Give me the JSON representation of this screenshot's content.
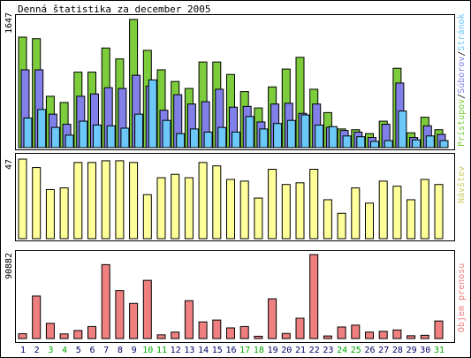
{
  "chart_data": {
    "type": "bar",
    "title": "Denná štatistika za december 2005",
    "categories": [
      "1",
      "2",
      "3",
      "4",
      "5",
      "6",
      "7",
      "8",
      "9",
      "10",
      "11",
      "12",
      "13",
      "14",
      "15",
      "16",
      "17",
      "18",
      "19",
      "20",
      "21",
      "22",
      "23",
      "24",
      "25",
      "26",
      "27",
      "28",
      "29",
      "30",
      "31"
    ],
    "weekend_days": [
      "3",
      "4",
      "10",
      "11",
      "17",
      "18",
      "24",
      "25",
      "31"
    ],
    "colors": {
      "hits": "#7ccc3c",
      "files": "#8080e8",
      "pages": "#6cc8f8",
      "visits": "#ffff99",
      "kbytes": "#f08080",
      "weekday_label": "#000066",
      "weekend_label": "#00aa00"
    },
    "panels": [
      {
        "name": "hits-files-pages",
        "max_label": "1647",
        "ylim": [
          0,
          1647
        ],
        "legend": [
          {
            "text": "Prístupov",
            "color": "#7ccc3c"
          },
          {
            "text": "/",
            "color": "#000000"
          },
          {
            "text": "Súborov",
            "color": "#8080e8"
          },
          {
            "text": "/",
            "color": "#000000"
          },
          {
            "text": "Stránok",
            "color": "#6cc8f8"
          }
        ],
        "series": [
          {
            "name": "Prístupov",
            "values": [
              1420,
              1400,
              660,
              580,
              970,
              970,
              1280,
              1140,
              1647,
              1250,
              1000,
              850,
              760,
              1100,
              1100,
              940,
              720,
              510,
              780,
              1010,
              1160,
              750,
              450,
              240,
              230,
              180,
              340,
              1020,
              190,
              390,
              230
            ]
          },
          {
            "name": "Súborov",
            "values": [
              1000,
              1000,
              430,
              300,
              660,
              690,
              770,
              760,
              930,
              790,
              480,
              680,
              560,
              590,
              750,
              520,
              530,
              330,
              560,
              570,
              440,
              560,
              260,
              220,
              200,
              130,
              300,
              830,
              130,
              280,
              170
            ]
          },
          {
            "name": "Stránok",
            "values": [
              380,
              490,
              260,
              160,
              340,
              290,
              280,
              250,
              430,
              870,
              350,
              180,
              240,
              200,
              260,
              200,
              400,
              240,
              310,
              350,
              420,
              290,
              270,
              150,
              140,
              80,
              90,
              470,
              100,
              150,
              90
            ]
          }
        ]
      },
      {
        "name": "visits",
        "max_label": "47",
        "ylim": [
          0,
          47
        ],
        "legend": [
          {
            "text": "Návštev",
            "color": "#cccc66"
          }
        ],
        "series": [
          {
            "name": "Návštev",
            "values": [
              47,
              42,
              29,
              30,
              45,
              45,
              46,
              46,
              45,
              26,
              36,
              38,
              36,
              45,
              43,
              35,
              34,
              24,
              41,
              32,
              33,
              41,
              23,
              15,
              30,
              21,
              34,
              31,
              23,
              35,
              32
            ]
          }
        ]
      },
      {
        "name": "kbytes",
        "max_label": "90882",
        "ylim": [
          0,
          90882
        ],
        "legend": [
          {
            "text": "Objem prenosu",
            "color": "#f08080"
          }
        ],
        "series": [
          {
            "name": "Objem prenosu",
            "values": [
              5200,
              46000,
              16500,
              5000,
              8700,
              13000,
              80000,
              52000,
              38000,
              63000,
              4000,
              7000,
              41000,
              18000,
              20000,
              11500,
              13000,
              2500,
              43000,
              5500,
              22000,
              90882,
              2800,
              12500,
              14500,
              7000,
              7800,
              9300,
              3000,
              3500,
              19000
            ]
          }
        ]
      }
    ]
  }
}
